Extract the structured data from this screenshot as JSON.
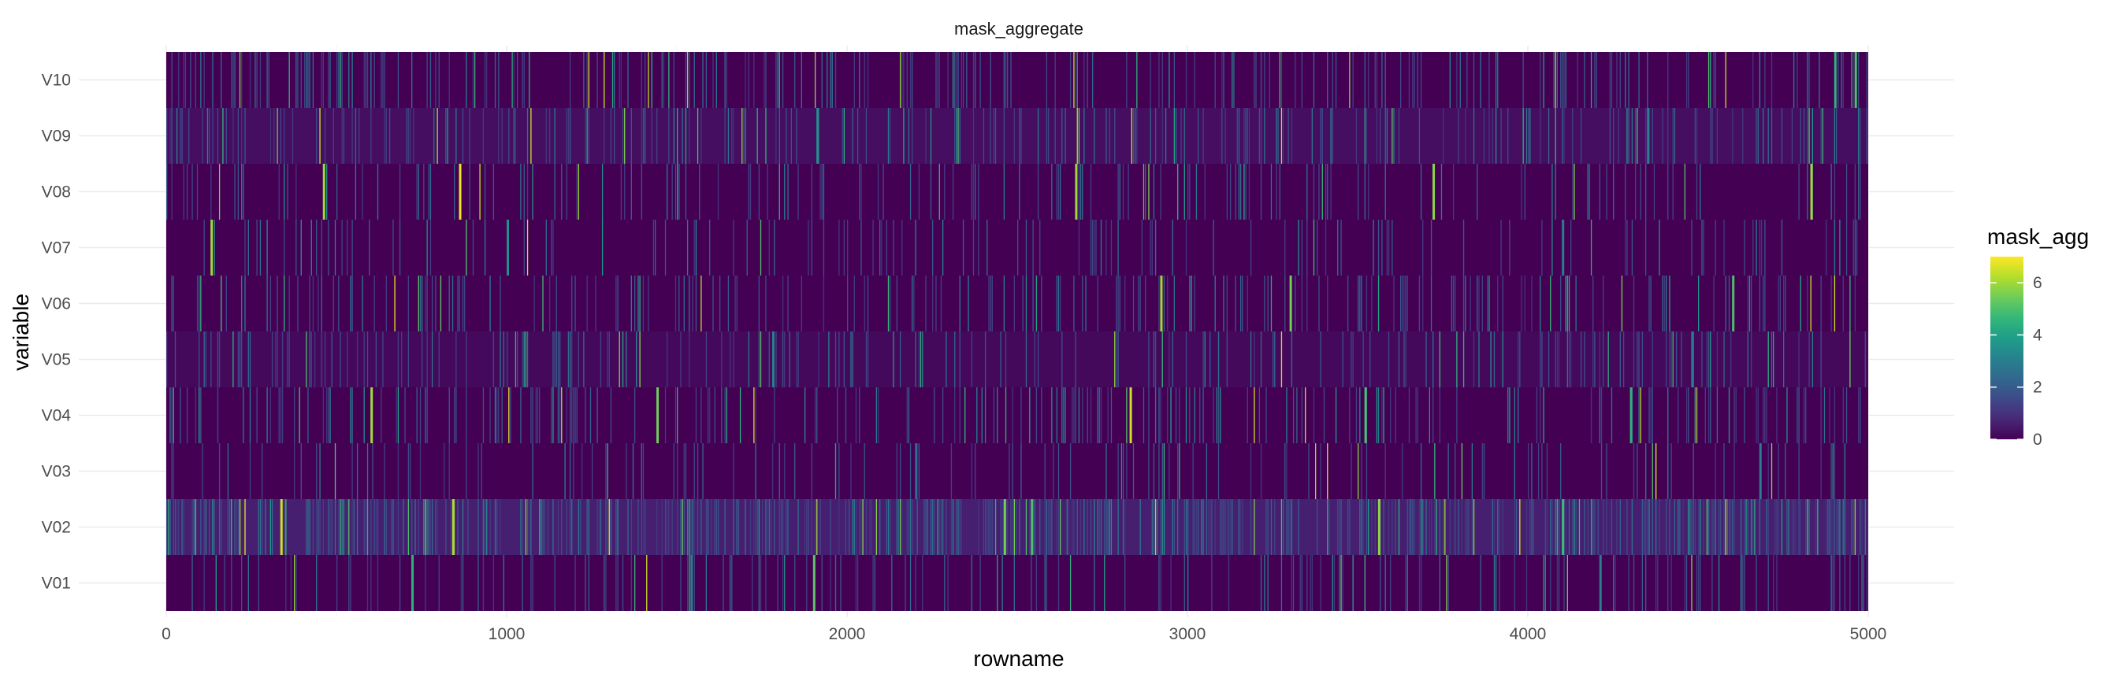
{
  "chart_data": {
    "type": "heatmap",
    "title": "mask_aggregate",
    "xlabel": "rowname",
    "ylabel": "variable",
    "xlim": [
      0,
      5000
    ],
    "x_ticks": [
      0,
      1000,
      2000,
      3000,
      4000,
      5000
    ],
    "x_tick_labels": [
      "0",
      "1000",
      "2000",
      "3000",
      "4000",
      "5000"
    ],
    "y_categories": [
      "V01",
      "V02",
      "V03",
      "V04",
      "V05",
      "V06",
      "V07",
      "V08",
      "V09",
      "V10"
    ],
    "grid": true,
    "legend": {
      "title": "mask_agg",
      "position": "right",
      "range": [
        0,
        7
      ],
      "ticks": [
        0,
        2,
        4,
        6
      ],
      "tick_labels": [
        "0",
        "2",
        "4",
        "6"
      ],
      "palette": "viridis",
      "colors": [
        "#440154",
        "#482878",
        "#3E4A89",
        "#31688E",
        "#26828E",
        "#1F9E89",
        "#35B779",
        "#6DCD59",
        "#B4DE2C",
        "#FDE725"
      ]
    },
    "series": [
      {
        "name": "V01",
        "highlights": [
          [
            720,
            4.5
          ],
          [
            1900,
            5.2
          ],
          [
            1540,
            3.1
          ],
          [
            4210,
            3.0
          ]
        ]
      },
      {
        "name": "V02",
        "highlights": [
          [
            335,
            6.5
          ],
          [
            840,
            6.2
          ],
          [
            2460,
            5.5
          ],
          [
            2540,
            5.0
          ],
          [
            3560,
            5.8
          ],
          [
            4100,
            4.8
          ]
        ]
      },
      {
        "name": "V03",
        "highlights": [
          [
            2200,
            2.5
          ],
          [
            4680,
            3.0
          ]
        ]
      },
      {
        "name": "V04",
        "highlights": [
          [
            600,
            6.0
          ],
          [
            1440,
            5.5
          ],
          [
            2830,
            6.5
          ],
          [
            3520,
            5.0
          ],
          [
            4300,
            4.5
          ]
        ]
      },
      {
        "name": "V05",
        "highlights": [
          [
            1780,
            3.2
          ],
          [
            4480,
            3.0
          ]
        ]
      },
      {
        "name": "V06",
        "highlights": [
          [
            2920,
            6.0
          ],
          [
            3300,
            5.5
          ],
          [
            4600,
            5.0
          ]
        ]
      },
      {
        "name": "V07",
        "highlights": [
          [
            130,
            6.0
          ],
          [
            1000,
            3.5
          ],
          [
            4100,
            3.0
          ]
        ]
      },
      {
        "name": "V08",
        "highlights": [
          [
            460,
            6.0
          ],
          [
            860,
            6.8
          ],
          [
            2670,
            6.0
          ],
          [
            3720,
            5.8
          ],
          [
            4830,
            6.0
          ]
        ]
      },
      {
        "name": "V09",
        "highlights": [
          [
            1910,
            3.5
          ],
          [
            4350,
            3.0
          ]
        ]
      },
      {
        "name": "V10",
        "highlights": [
          [
            4900,
            4.5
          ],
          [
            4960,
            5.0
          ]
        ]
      }
    ]
  }
}
